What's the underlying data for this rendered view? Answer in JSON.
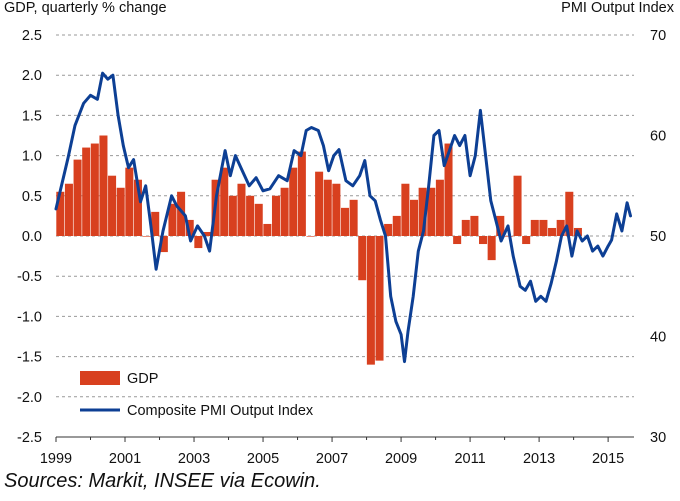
{
  "chart_data": {
    "type": "bar",
    "left_axis_title": "GDP, quarterly % change",
    "right_axis_title": "PMI Output  Index",
    "source": "Sources: Markit, INSEE via Ecowin.",
    "left_ylim": [
      -2.5,
      2.5
    ],
    "left_ticks": [
      "2.5",
      "2.0",
      "1.5",
      "1.0",
      "0.5",
      "0.0",
      "-0.5",
      "-1.0",
      "-1.5",
      "-2.0",
      "-2.5"
    ],
    "right_ylim": [
      30,
      70
    ],
    "right_ticks": [
      "70",
      "60",
      "50",
      "40",
      "30"
    ],
    "x_ticks": [
      "1999",
      "2001",
      "2003",
      "2005",
      "2007",
      "2009",
      "2011",
      "2013",
      "2015"
    ],
    "grid": true,
    "colors": {
      "bar": "#d8401f",
      "line": "#0d3f94",
      "grid": "#999999"
    },
    "series": [
      {
        "name": "GDP",
        "kind": "bar",
        "axis": "left",
        "start": "1999Q1",
        "values": [
          0.55,
          0.65,
          0.95,
          1.1,
          1.15,
          1.25,
          0.75,
          0.6,
          0.85,
          0.7,
          0.0,
          0.3,
          -0.2,
          0.4,
          0.55,
          0.2,
          -0.15,
          0.05,
          0.7,
          0.85,
          0.5,
          0.65,
          0.5,
          0.4,
          0.15,
          0.5,
          0.6,
          0.85,
          1.05,
          0.0,
          0.8,
          0.7,
          0.65,
          0.35,
          0.45,
          -0.55,
          -1.6,
          -1.55,
          0.15,
          0.25,
          0.65,
          0.45,
          0.6,
          0.6,
          0.7,
          1.15,
          -0.1,
          0.2,
          0.25,
          -0.1,
          -0.3,
          0.25,
          0.0,
          0.75,
          -0.1,
          0.2,
          0.2,
          0.1,
          0.2,
          0.55,
          0.1
        ]
      },
      {
        "name": "Composite PMI Output Index",
        "kind": "line",
        "axis": "right",
        "start": 1999.0,
        "step": 0.0833333,
        "anchors": [
          [
            1999.0,
            52.7
          ],
          [
            1999.35,
            57.8
          ],
          [
            1999.55,
            61.0
          ],
          [
            1999.8,
            63.2
          ],
          [
            2000.0,
            64.0
          ],
          [
            2000.2,
            63.6
          ],
          [
            2000.35,
            66.2
          ],
          [
            2000.5,
            65.6
          ],
          [
            2000.65,
            66.0
          ],
          [
            2000.8,
            62.0
          ],
          [
            2000.95,
            59.0
          ],
          [
            2001.1,
            56.8
          ],
          [
            2001.25,
            57.6
          ],
          [
            2001.45,
            53.4
          ],
          [
            2001.6,
            55.0
          ],
          [
            2001.75,
            51.0
          ],
          [
            2001.9,
            46.7
          ],
          [
            2002.1,
            50.5
          ],
          [
            2002.35,
            54.0
          ],
          [
            2002.5,
            53.0
          ],
          [
            2002.75,
            52.0
          ],
          [
            2002.9,
            49.5
          ],
          [
            2003.1,
            51.0
          ],
          [
            2003.3,
            50.0
          ],
          [
            2003.45,
            48.5
          ],
          [
            2003.65,
            54.0
          ],
          [
            2003.9,
            58.5
          ],
          [
            2004.05,
            56.0
          ],
          [
            2004.2,
            58.0
          ],
          [
            2004.4,
            56.5
          ],
          [
            2004.6,
            55.0
          ],
          [
            2004.8,
            55.8
          ],
          [
            2005.0,
            54.5
          ],
          [
            2005.2,
            54.7
          ],
          [
            2005.45,
            56.0
          ],
          [
            2005.7,
            55.5
          ],
          [
            2005.9,
            58.5
          ],
          [
            2006.1,
            58.0
          ],
          [
            2006.25,
            60.5
          ],
          [
            2006.4,
            60.8
          ],
          [
            2006.6,
            60.5
          ],
          [
            2006.75,
            59.0
          ],
          [
            2006.9,
            56.5
          ],
          [
            2007.05,
            58.0
          ],
          [
            2007.2,
            58.6
          ],
          [
            2007.4,
            55.5
          ],
          [
            2007.6,
            55.0
          ],
          [
            2007.8,
            56.0
          ],
          [
            2007.95,
            57.5
          ],
          [
            2008.1,
            54.0
          ],
          [
            2008.25,
            53.5
          ],
          [
            2008.4,
            51.6
          ],
          [
            2008.55,
            50.0
          ],
          [
            2008.7,
            44.0
          ],
          [
            2008.85,
            41.5
          ],
          [
            2009.0,
            40.2
          ],
          [
            2009.1,
            37.5
          ],
          [
            2009.2,
            40.5
          ],
          [
            2009.35,
            44.0
          ],
          [
            2009.5,
            48.5
          ],
          [
            2009.65,
            50.5
          ],
          [
            2009.8,
            55.0
          ],
          [
            2009.95,
            60.0
          ],
          [
            2010.1,
            60.5
          ],
          [
            2010.25,
            57.0
          ],
          [
            2010.4,
            58.5
          ],
          [
            2010.55,
            60.0
          ],
          [
            2010.7,
            59.0
          ],
          [
            2010.85,
            60.0
          ],
          [
            2011.0,
            56.0
          ],
          [
            2011.15,
            58.0
          ],
          [
            2011.3,
            62.5
          ],
          [
            2011.45,
            58.0
          ],
          [
            2011.6,
            53.5
          ],
          [
            2011.75,
            51.5
          ],
          [
            2011.9,
            49.5
          ],
          [
            2012.1,
            51.0
          ],
          [
            2012.25,
            48.0
          ],
          [
            2012.45,
            45.0
          ],
          [
            2012.6,
            44.6
          ],
          [
            2012.75,
            45.5
          ],
          [
            2012.9,
            43.5
          ],
          [
            2013.05,
            44.0
          ],
          [
            2013.2,
            43.5
          ],
          [
            2013.35,
            45.3
          ],
          [
            2013.5,
            47.5
          ],
          [
            2013.65,
            50.0
          ],
          [
            2013.8,
            51.0
          ],
          [
            2013.95,
            48.0
          ],
          [
            2014.1,
            50.5
          ],
          [
            2014.25,
            49.5
          ],
          [
            2014.4,
            50.0
          ],
          [
            2014.55,
            48.5
          ],
          [
            2014.7,
            49.0
          ],
          [
            2014.85,
            48.0
          ],
          [
            2015.0,
            49.0
          ],
          [
            2015.1,
            49.6
          ],
          [
            2015.25,
            52.2
          ],
          [
            2015.4,
            50.5
          ],
          [
            2015.55,
            53.3
          ],
          [
            2015.65,
            52.0
          ]
        ]
      }
    ],
    "legend": [
      {
        "label": "GDP",
        "kind": "bar"
      },
      {
        "label": "Composite PMI Output Index",
        "kind": "line"
      }
    ]
  }
}
